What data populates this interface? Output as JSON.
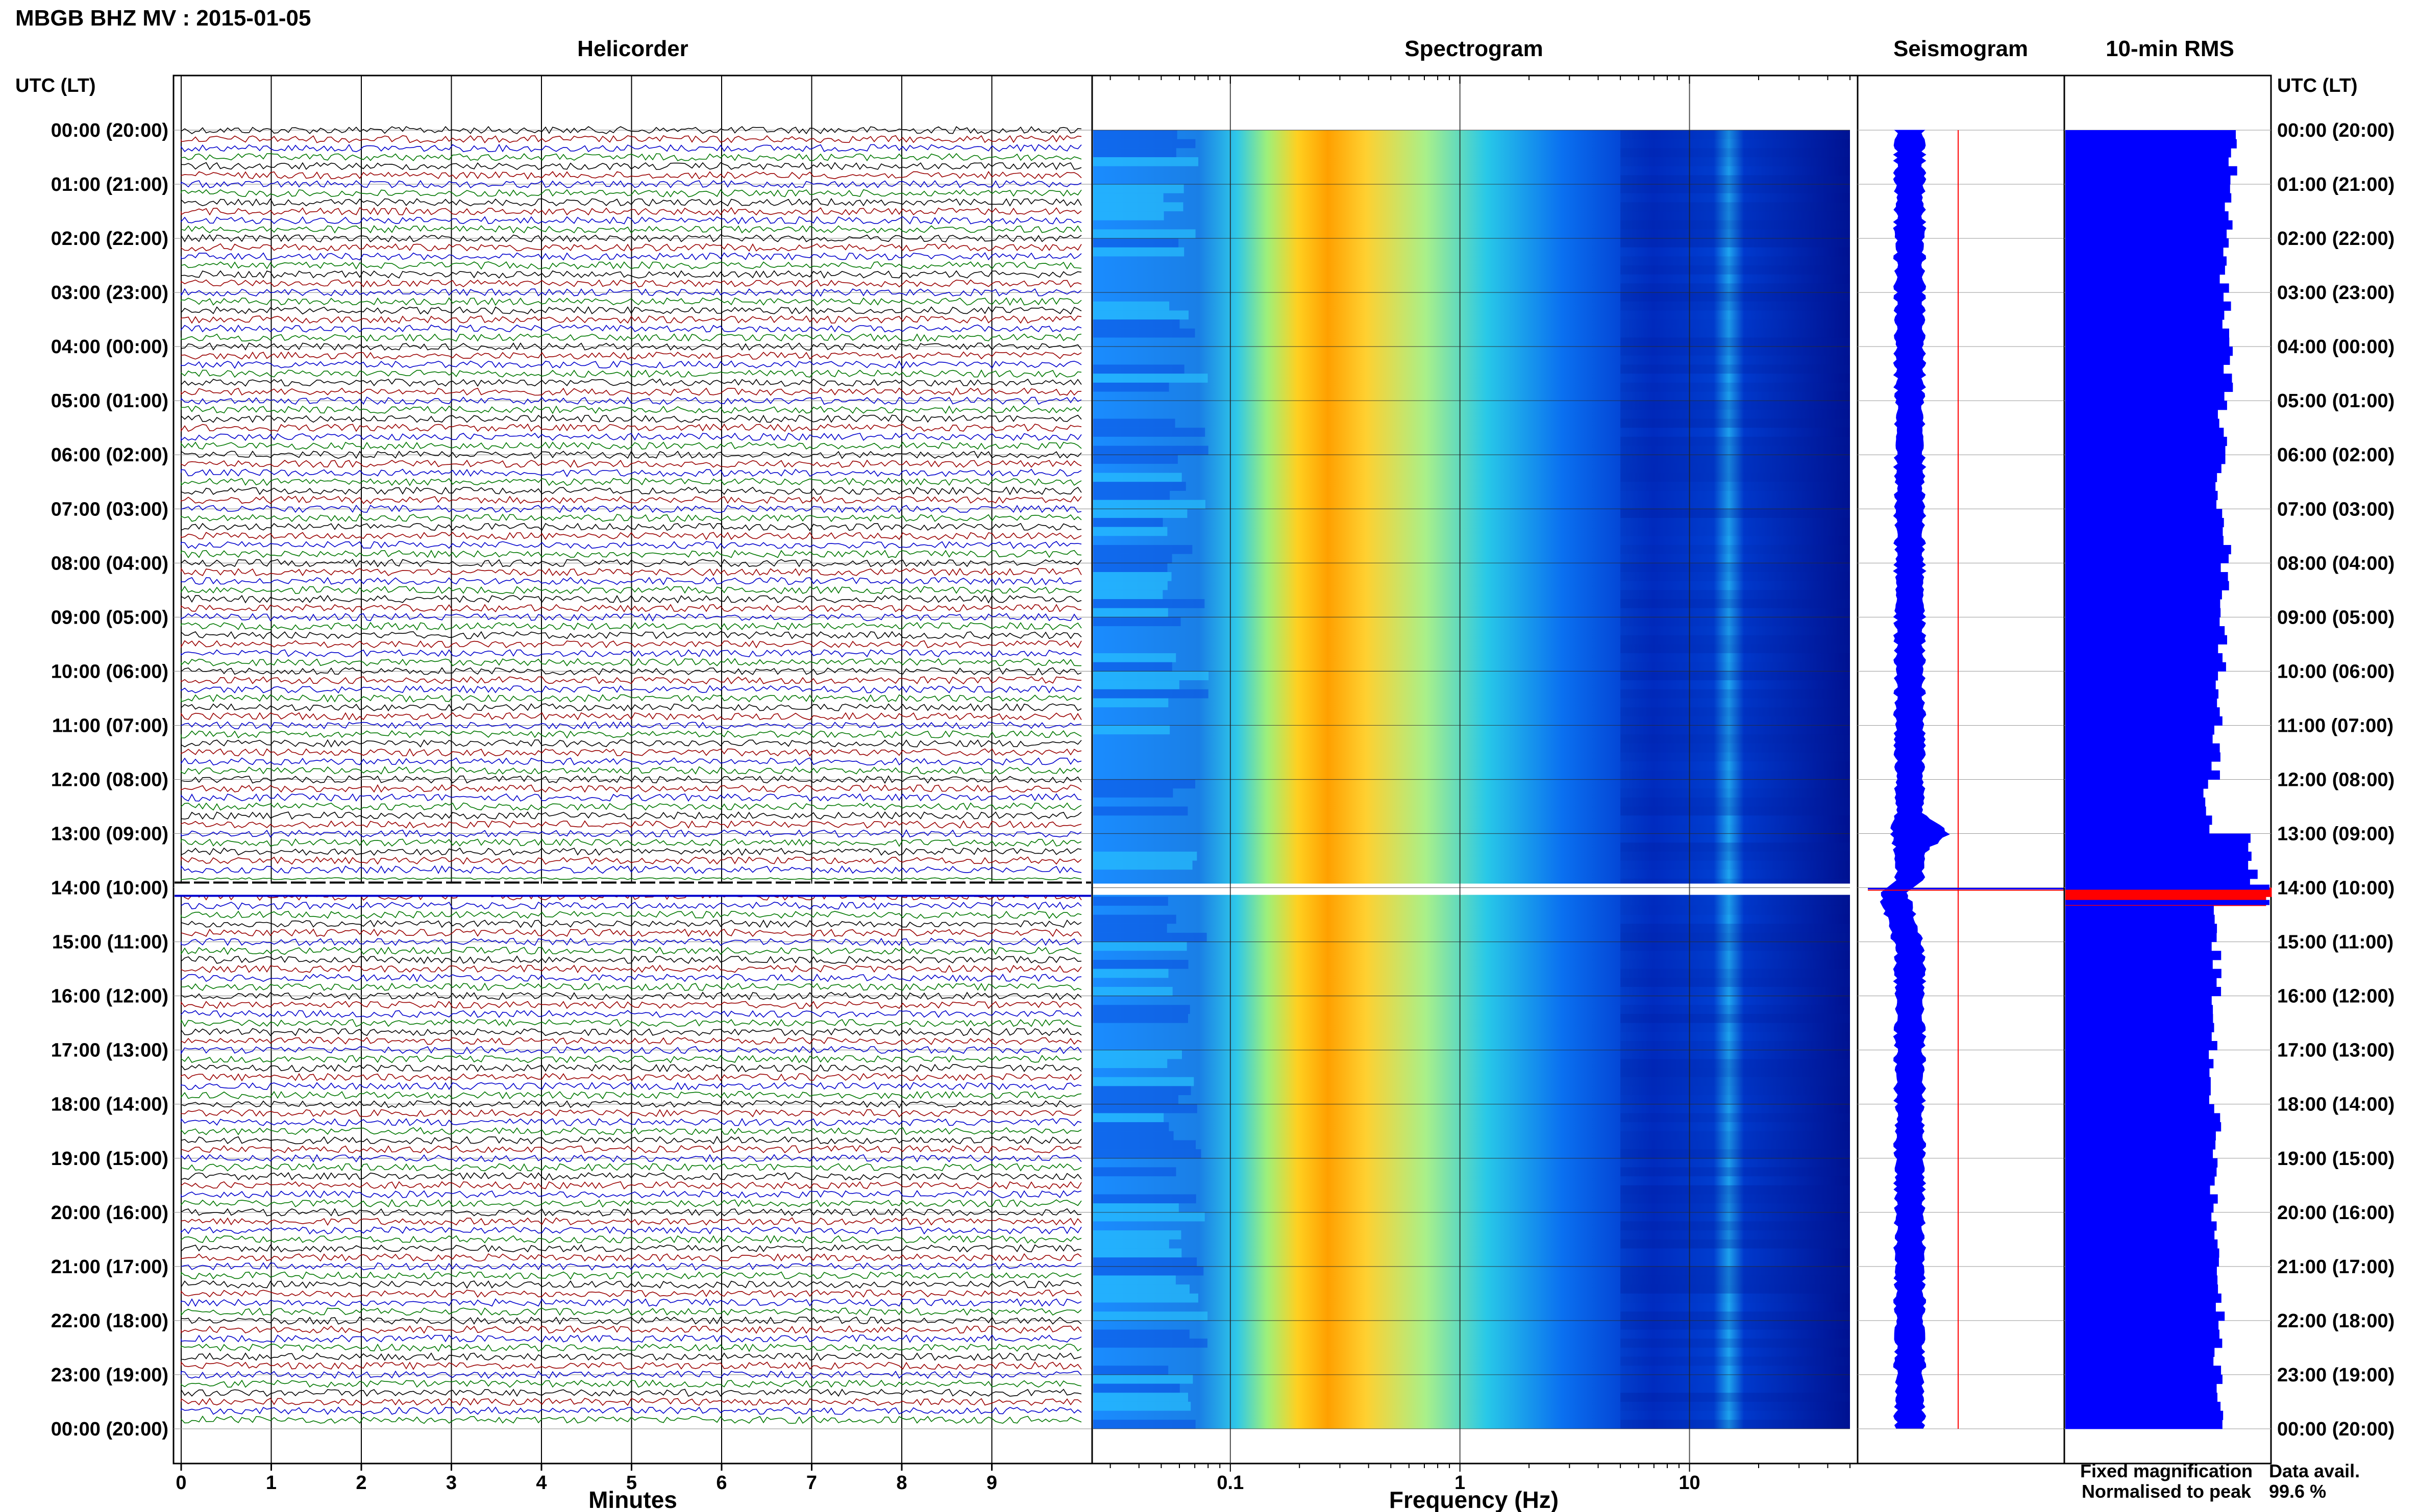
{
  "title": "MBGB BHZ MV : 2015-01-05",
  "panels": {
    "helicorder": "Helicorder",
    "spectrogram": "Spectrogram",
    "seismogram": "Seismogram",
    "rms": "10-min RMS"
  },
  "axis_header_left": "UTC (LT)",
  "axis_header_right": "UTC (LT)",
  "hour_labels": [
    "00:00 (20:00)",
    "01:00 (21:00)",
    "02:00 (22:00)",
    "03:00 (23:00)",
    "04:00 (00:00)",
    "05:00 (01:00)",
    "06:00 (02:00)",
    "07:00 (03:00)",
    "08:00 (04:00)",
    "09:00 (05:00)",
    "10:00 (06:00)",
    "11:00 (07:00)",
    "12:00 (08:00)",
    "13:00 (09:00)",
    "14:00 (10:00)",
    "15:00 (11:00)",
    "16:00 (12:00)",
    "17:00 (13:00)",
    "18:00 (14:00)",
    "19:00 (15:00)",
    "20:00 (16:00)",
    "21:00 (17:00)",
    "22:00 (18:00)",
    "23:00 (19:00)",
    "00:00 (20:00)"
  ],
  "legend": {
    "fixed": "Fixed magnification",
    "normalised": "Normalised to peak",
    "fixed_color": "#0000ff",
    "normalised_color": "#ff0000"
  },
  "data_avail": {
    "label": "Data avail.",
    "value": "99.6 %"
  },
  "colors": {
    "trace_cycle": [
      "#000000",
      "#990000",
      "#0000cc",
      "#007700"
    ],
    "rms_fixed": "#0000ff",
    "rms_peak": "#ff0000",
    "spectrogram_scale": [
      "#00008f",
      "#0050ff",
      "#00d0ff",
      "#ffff00",
      "#ff8000"
    ]
  },
  "chart_data": [
    {
      "type": "line",
      "panel": "Helicorder",
      "xlabel": "Minutes",
      "x_ticks": [
        "0",
        "1",
        "2",
        "3",
        "4",
        "5",
        "6",
        "7",
        "8",
        "9"
      ],
      "xlim": [
        0,
        10
      ],
      "traces_per_hour": 6,
      "gap_hour": "14:00"
    },
    {
      "type": "heatmap",
      "panel": "Spectrogram",
      "xlabel": "Frequency (Hz)",
      "x_scale": "log",
      "x_ticks": [
        "0.1",
        "1",
        "10"
      ],
      "xlim": [
        0.025,
        50
      ],
      "peak_band_hz": [
        0.2,
        0.5
      ]
    },
    {
      "type": "area",
      "panel": "Seismogram",
      "event_hour": "13:00",
      "gap_hour": "14:00"
    },
    {
      "type": "bar",
      "panel": "10-min RMS",
      "orientation": "horizontal",
      "hours": [
        "00:00",
        "01:00",
        "02:00",
        "03:00",
        "04:00",
        "05:00",
        "06:00",
        "07:00",
        "08:00",
        "09:00",
        "10:00",
        "11:00",
        "12:00",
        "13:00",
        "14:00",
        "15:00",
        "16:00",
        "17:00",
        "18:00",
        "19:00",
        "20:00",
        "21:00",
        "22:00",
        "23:00"
      ],
      "values_relative": [
        0.82,
        0.8,
        0.78,
        0.79,
        0.8,
        0.77,
        0.76,
        0.79,
        0.78,
        0.77,
        0.76,
        0.74,
        0.7,
        0.92,
        1.0,
        0.74,
        0.73,
        0.72,
        0.74,
        0.73,
        0.74,
        0.76,
        0.75,
        0.76
      ],
      "peak_hour": "14:00"
    }
  ]
}
